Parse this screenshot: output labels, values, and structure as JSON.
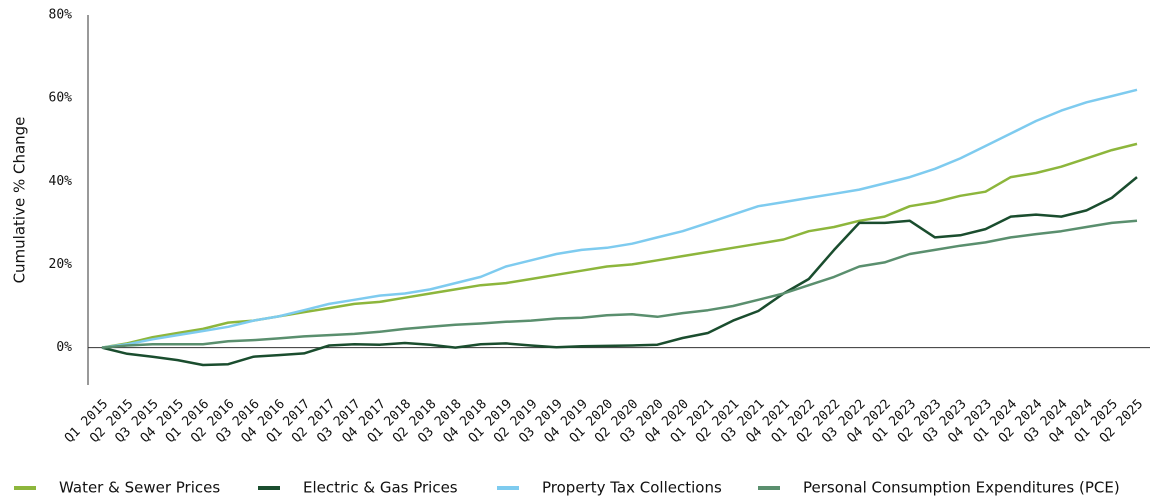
{
  "chart_data": {
    "type": "line",
    "y_label": "Cumulative % Change",
    "categories": [
      "Q1 2015",
      "Q2 2015",
      "Q3 2015",
      "Q4 2015",
      "Q1 2016",
      "Q2 2016",
      "Q3 2016",
      "Q4 2016",
      "Q1 2017",
      "Q2 2017",
      "Q3 2017",
      "Q4 2017",
      "Q1 2018",
      "Q2 2018",
      "Q3 2018",
      "Q4 2018",
      "Q1 2019",
      "Q2 2019",
      "Q3 2019",
      "Q4 2019",
      "Q1 2020",
      "Q2 2020",
      "Q3 2020",
      "Q4 2020",
      "Q1 2021",
      "Q2 2021",
      "Q3 2021",
      "Q4 2021",
      "Q1 2022",
      "Q2 2022",
      "Q3 2022",
      "Q4 2022",
      "Q1 2023",
      "Q2 2023",
      "Q3 2023",
      "Q4 2023",
      "Q1 2024",
      "Q2 2024",
      "Q3 2024",
      "Q4 2024",
      "Q1 2025",
      "Q2 2025"
    ],
    "series": [
      {
        "name": "Water & Sewer Prices",
        "color": "#8db63c",
        "values": [
          0,
          1,
          2.5,
          3.5,
          4.5,
          6,
          6.5,
          7.5,
          8.5,
          9.5,
          10.5,
          11,
          12,
          13,
          14,
          15,
          15.5,
          16.5,
          17.5,
          18.5,
          19.5,
          20,
          21,
          22,
          23,
          24,
          25,
          26,
          28,
          29,
          30.5,
          31.5,
          34,
          35,
          36.5,
          37.5,
          41,
          42,
          43.5,
          45.5,
          47.5,
          49
        ]
      },
      {
        "name": "Electric & Gas Prices",
        "color": "#1a4d2e",
        "values": [
          0,
          -1.5,
          -2.2,
          -3,
          -4.2,
          -4,
          -2.2,
          -1.8,
          -1.4,
          0.5,
          0.8,
          0.7,
          1.1,
          0.7,
          0,
          0.8,
          1,
          0.5,
          0.1,
          0.3,
          0.4,
          0.5,
          0.7,
          2.3,
          3.5,
          6.5,
          8.8,
          13,
          16.5,
          23.5,
          30,
          30,
          30.5,
          26.5,
          27,
          28.5,
          31.5,
          32,
          31.5,
          33,
          36,
          41
        ]
      },
      {
        "name": "Property Tax Collections",
        "color": "#7ecbef",
        "values": [
          0,
          0.8,
          2,
          3,
          4,
          5,
          6.5,
          7.5,
          9,
          10.5,
          11.5,
          12.5,
          13,
          14,
          15.5,
          17,
          19.5,
          21,
          22.5,
          23.5,
          24,
          25,
          26.5,
          28,
          30,
          32,
          34,
          35,
          36,
          37,
          38,
          39.5,
          41,
          43,
          45.5,
          48.5,
          51.5,
          54.5,
          57,
          59,
          60.5,
          62
        ]
      },
      {
        "name": "Personal Consumption Expenditures (PCE)",
        "color": "#5a8f6e",
        "values": [
          0,
          0.5,
          0.8,
          0.8,
          0.8,
          1.5,
          1.8,
          2.2,
          2.7,
          3,
          3.3,
          3.8,
          4.5,
          5,
          5.5,
          5.8,
          6.2,
          6.5,
          7,
          7.2,
          7.8,
          8,
          7.4,
          8.3,
          9,
          10,
          11.5,
          13,
          15,
          17,
          19.5,
          20.5,
          22.5,
          23.5,
          24.5,
          25.3,
          26.5,
          27.3,
          28,
          29,
          30,
          30.5
        ]
      }
    ],
    "ylim": [
      -9,
      80
    ],
    "yticks": [
      {
        "value": 0,
        "label": "0%"
      },
      {
        "value": 20,
        "label": "20%"
      },
      {
        "value": 40,
        "label": "40%"
      },
      {
        "value": 60,
        "label": "60%"
      },
      {
        "value": 80,
        "label": "80%"
      }
    ],
    "legend": "bottom"
  }
}
